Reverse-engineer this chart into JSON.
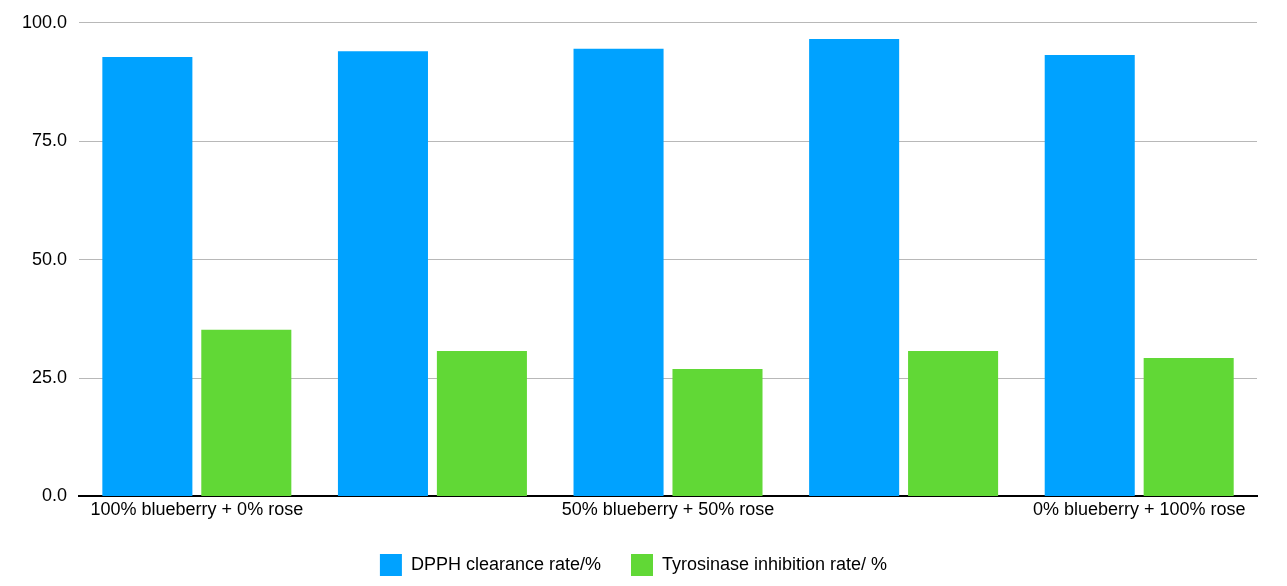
{
  "chart_data": {
    "type": "bar",
    "categories": [
      "100% blueberry + 0% rose",
      null,
      "50% blueberry + 50% rose",
      null,
      "0% blueberry + 100% rose"
    ],
    "series": [
      {
        "name": "DPPH clearance rate/%",
        "color": "#00a2ff",
        "values": [
          92.8,
          94.0,
          94.5,
          96.6,
          93.2
        ]
      },
      {
        "name": "Tyrosinase inhibition rate/ %",
        "color": "#61d836",
        "values": [
          35.2,
          30.7,
          26.9,
          30.7,
          29.2
        ]
      }
    ],
    "ylim": [
      0,
      100
    ],
    "yticks": [
      {
        "value": 0,
        "label": "0.0"
      },
      {
        "value": 25,
        "label": "25.0"
      },
      {
        "value": 50,
        "label": "50.0"
      },
      {
        "value": 75,
        "label": "75.0"
      },
      {
        "value": 100,
        "label": "100.0"
      }
    ],
    "grid": "y",
    "legend": "bottom"
  }
}
